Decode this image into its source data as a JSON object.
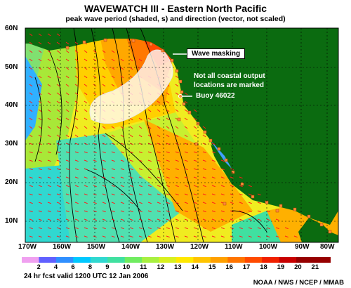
{
  "title": "WAVEWATCH III - Eastern North Pacific",
  "subtitle": "peak wave period (shaded, s) and direction (vector, not scaled)",
  "lat_labels": [
    "60N",
    "50N",
    "40N",
    "30N",
    "20N",
    "10N"
  ],
  "lon_labels": [
    "170W",
    "160W",
    "150W",
    "140W",
    "130W",
    "120W",
    "110W",
    "100W",
    "90W",
    "80W"
  ],
  "annotations": {
    "wave_masking": "Wave masking",
    "coastal_note_line1": "Not all coastal output",
    "coastal_note_line2": "locations are marked",
    "buoy": "Buoy 46022"
  },
  "colorbar": {
    "labels": [
      "2",
      "4",
      "6",
      "8",
      "9",
      "10",
      "11",
      "12",
      "13",
      "14",
      "15",
      "16",
      "17",
      "18",
      "19",
      "20",
      "21"
    ],
    "colors": [
      "#f0a0f0",
      "#6060ff",
      "#2f8fff",
      "#00c8ff",
      "#30d8d0",
      "#40e0a0",
      "#70ec60",
      "#a8f040",
      "#d8f020",
      "#ffe800",
      "#ffc400",
      "#ffa000",
      "#ff7400",
      "#ff4a00",
      "#f02000",
      "#c80000",
      "#960000"
    ]
  },
  "footer_left": "24 hr fcst valid 1200 UTC  12 Jan 2006",
  "footer_right": "NOAA / NWS / NCEP / MMAB",
  "colors": {
    "land": "#0b6b10",
    "grid": "#000000",
    "arrow": "#ff1a1a",
    "buoy_marker": "#ff8a3a"
  }
}
